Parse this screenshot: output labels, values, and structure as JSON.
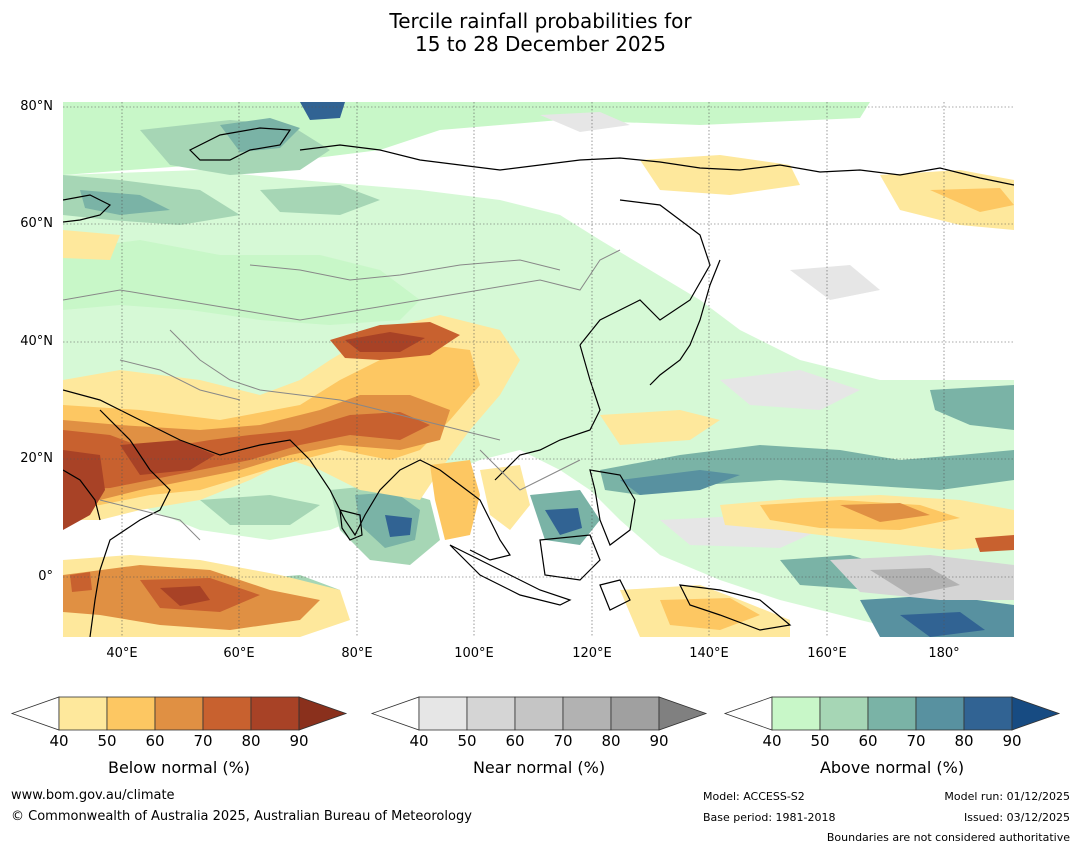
{
  "title": {
    "line1": "Tercile rainfall probabilities for",
    "line2": "15 to 28 December 2025"
  },
  "map": {
    "latitude_labels": [
      "80°N",
      "60°N",
      "40°N",
      "20°N",
      "0°"
    ],
    "longitude_labels": [
      "40°E",
      "60°E",
      "80°E",
      "100°E",
      "120°E",
      "140°E",
      "160°E",
      "180°"
    ]
  },
  "colorbars": {
    "below": {
      "title": "Below normal (%)",
      "ticks": [
        "40",
        "50",
        "60",
        "70",
        "80",
        "90"
      ],
      "colors": [
        "#ffffff",
        "#fee89c",
        "#fdc762",
        "#e09043",
        "#c8612f",
        "#a84226",
        "#8a301c"
      ]
    },
    "near": {
      "title": "Near normal (%)",
      "ticks": [
        "40",
        "50",
        "60",
        "70",
        "80",
        "90"
      ],
      "colors": [
        "#ffffff",
        "#e6e6e6",
        "#d5d5d5",
        "#c5c5c5",
        "#b2b2b2",
        "#a0a0a0",
        "#808080"
      ]
    },
    "above": {
      "title": "Above normal (%)",
      "ticks": [
        "40",
        "50",
        "60",
        "70",
        "80",
        "90"
      ],
      "colors": [
        "#ffffff",
        "#c8f7c8",
        "#a6d6b5",
        "#7ab3a6",
        "#5891a0",
        "#316393",
        "#174b82"
      ]
    }
  },
  "footer": {
    "url": "www.bom.gov.au/climate",
    "copyright": "© Commonwealth of Australia 2025, Australian Bureau of Meteorology",
    "model": "Model: ACCESS-S2",
    "base_period": "Base period: 1981-2018",
    "model_run": "Model run: 01/12/2025",
    "issued": "Issued: 03/12/2025",
    "boundaries": "Boundaries are not considered authoritative"
  }
}
